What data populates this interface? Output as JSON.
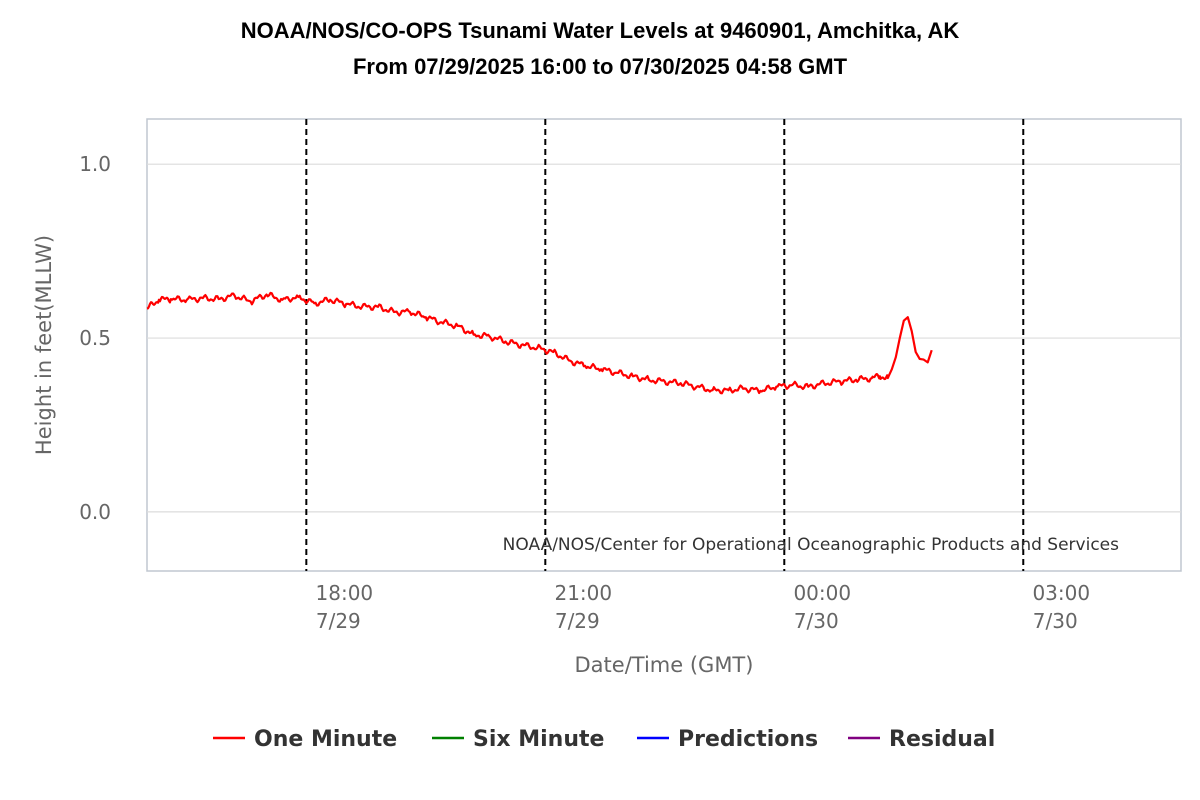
{
  "chart_data": {
    "type": "line",
    "title": "NOAA/NOS/CO-OPS Tsunami Water Levels at 9460901, Amchitka, AK",
    "subtitle": "From 07/29/2025 16:00 to 07/30/2025 04:58 GMT",
    "xlabel": "Date/Time (GMT)",
    "ylabel": "Height in feet(MLLW)",
    "credit": "NOAA/NOS/Center for Operational Oceanographic Products and Services",
    "xlim_hours": [
      16.0,
      28.98
    ],
    "ylim": [
      -0.17,
      1.13
    ],
    "yticks": [
      {
        "value": 0.0,
        "label": "0.0"
      },
      {
        "value": 0.5,
        "label": "0.5"
      },
      {
        "value": 1.0,
        "label": "1.0"
      }
    ],
    "xticks": [
      {
        "hour": 18,
        "time": "18:00",
        "date": "7/29"
      },
      {
        "hour": 21,
        "time": "21:00",
        "date": "7/29"
      },
      {
        "hour": 24,
        "time": "00:00",
        "date": "7/30"
      },
      {
        "hour": 27,
        "time": "03:00",
        "date": "7/30"
      }
    ],
    "series": [
      {
        "name": "One Minute",
        "color": "#ff0000",
        "x_hours": [
          16.0,
          16.15,
          16.3,
          16.5,
          16.7,
          16.9,
          17.1,
          17.3,
          17.5,
          17.7,
          17.9,
          18.1,
          18.3,
          18.5,
          18.7,
          18.9,
          19.1,
          19.3,
          19.5,
          19.7,
          19.9,
          20.1,
          20.3,
          20.5,
          20.7,
          20.9,
          21.1,
          21.3,
          21.5,
          21.7,
          21.9,
          22.1,
          22.3,
          22.5,
          22.7,
          22.9,
          23.1,
          23.3,
          23.5,
          23.7,
          23.9,
          24.1,
          24.3,
          24.5,
          24.7,
          24.9,
          25.1,
          25.2,
          25.3,
          25.35,
          25.4,
          25.45,
          25.5,
          25.55,
          25.6,
          25.65,
          25.7,
          25.75,
          25.8,
          25.85
        ],
        "values": [
          0.585,
          0.61,
          0.612,
          0.61,
          0.615,
          0.612,
          0.622,
          0.605,
          0.625,
          0.61,
          0.618,
          0.6,
          0.61,
          0.598,
          0.59,
          0.59,
          0.575,
          0.575,
          0.56,
          0.545,
          0.535,
          0.51,
          0.505,
          0.49,
          0.48,
          0.472,
          0.46,
          0.435,
          0.42,
          0.41,
          0.4,
          0.39,
          0.38,
          0.375,
          0.37,
          0.36,
          0.35,
          0.35,
          0.355,
          0.348,
          0.36,
          0.365,
          0.36,
          0.37,
          0.375,
          0.38,
          0.385,
          0.39,
          0.385,
          0.41,
          0.445,
          0.5,
          0.55,
          0.56,
          0.52,
          0.46,
          0.44,
          0.438,
          0.43,
          0.465
        ]
      }
    ],
    "legend": [
      {
        "name": "One Minute",
        "color": "#ff0000"
      },
      {
        "name": "Six Minute",
        "color": "#008000"
      },
      {
        "name": "Predictions",
        "color": "#0000ff"
      },
      {
        "name": "Residual",
        "color": "#800080"
      }
    ],
    "legend_position": "bottom-center",
    "grid": true
  }
}
